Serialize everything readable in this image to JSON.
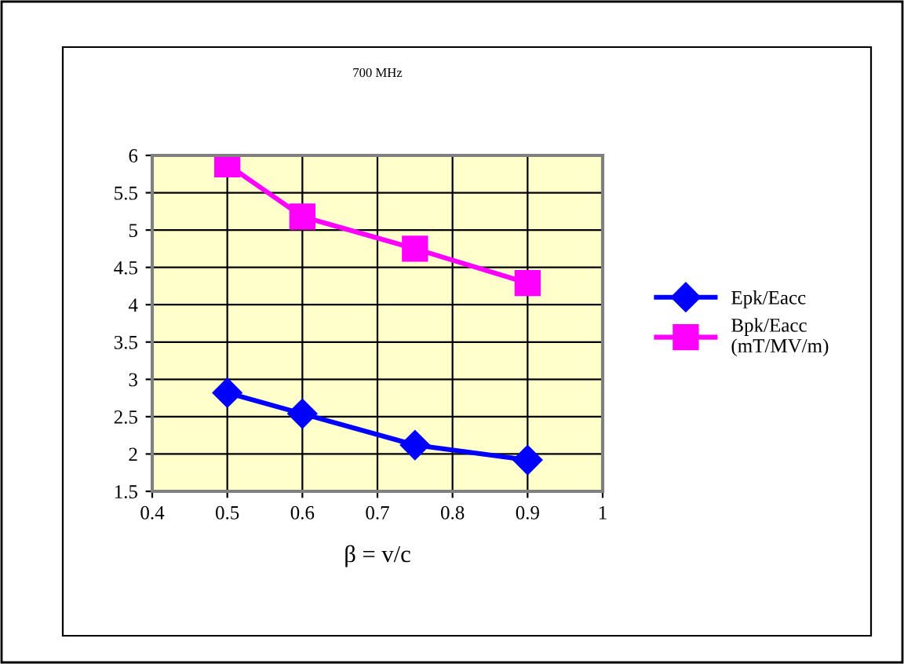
{
  "chart_data": {
    "type": "line",
    "title": "700 MHz",
    "xlabel": "β = v/c",
    "x": [
      0.5,
      0.6,
      0.75,
      0.9
    ],
    "series": [
      {
        "name": "Epk/Eacc",
        "color": "#0000ff",
        "marker": "diamond",
        "values": [
          2.82,
          2.54,
          2.12,
          1.92
        ]
      },
      {
        "name": "Bpk/Eacc\n(mT/MV/m)",
        "color": "#ff00ff",
        "marker": "square",
        "values": [
          5.88,
          5.18,
          4.75,
          4.29
        ]
      }
    ],
    "xlim": [
      0.4,
      1
    ],
    "xticks": [
      0.4,
      0.5,
      0.6,
      0.7,
      0.8,
      0.9,
      1
    ],
    "ylim": [
      1.5,
      6
    ],
    "yticks": [
      1.5,
      2,
      2.5,
      3,
      3.5,
      4,
      4.5,
      5,
      5.5,
      6
    ],
    "grid": true,
    "legend": "right",
    "line_style": "solid"
  }
}
